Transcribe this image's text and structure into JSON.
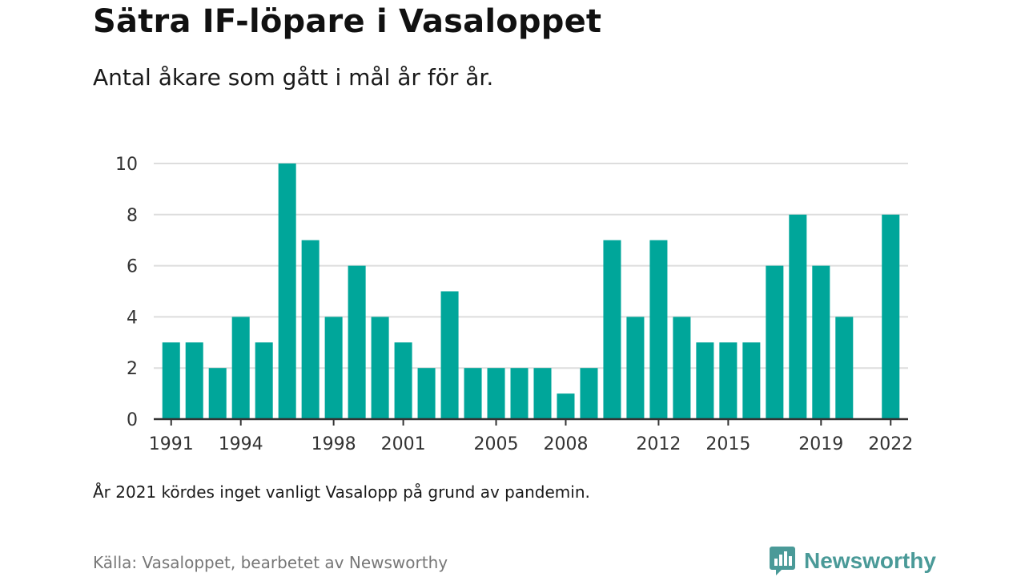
{
  "title": "Sätra IF-löpare i Vasaloppet",
  "subtitle": "Antal åkare som gått i mål år för år.",
  "footnote": "År 2021 kördes inget vanligt Vasalopp på grund av pandemin.",
  "source": "Källa: Vasaloppet, bearbetet av Newsworthy",
  "brand": {
    "name": "Newsworthy",
    "icon": "newsworthy-logo-icon",
    "color": "#4a9a98"
  },
  "colors": {
    "bar": "#00a69a",
    "grid": "#dddddd",
    "axis": "#333333"
  },
  "chart_data": {
    "type": "bar",
    "x": [
      1991,
      1992,
      1993,
      1994,
      1995,
      1996,
      1997,
      1998,
      1999,
      2000,
      2001,
      2002,
      2003,
      2004,
      2005,
      2006,
      2007,
      2008,
      2009,
      2010,
      2011,
      2012,
      2013,
      2014,
      2015,
      2016,
      2017,
      2018,
      2019,
      2020,
      2021,
      2022
    ],
    "values": [
      3,
      3,
      2,
      4,
      3,
      10,
      7,
      4,
      6,
      4,
      3,
      2,
      5,
      2,
      2,
      2,
      2,
      1,
      2,
      7,
      4,
      7,
      4,
      3,
      3,
      3,
      6,
      8,
      6,
      4,
      null,
      8
    ],
    "x_ticks": [
      "1991",
      "1994",
      "1998",
      "2001",
      "2005",
      "2008",
      "2012",
      "2015",
      "2019",
      "2022"
    ],
    "y_ticks": [
      "0",
      "2",
      "4",
      "6",
      "8",
      "10"
    ],
    "ylim": [
      0,
      10
    ],
    "xlabel": "",
    "ylabel": "",
    "grid": true
  }
}
